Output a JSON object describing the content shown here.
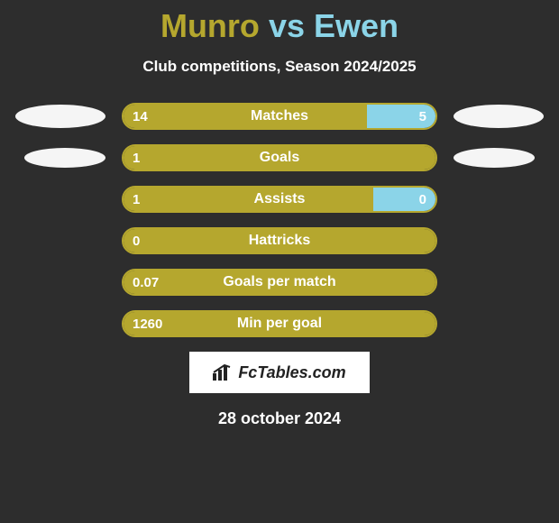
{
  "title": {
    "player1": "Munro",
    "vs": "vs",
    "player2": "Ewen",
    "player1_color": "#b5a72e",
    "vs_color": "#8bd4e8",
    "player2_color": "#8bd4e8",
    "fontsize": 36
  },
  "subtitle": "Club competitions, Season 2024/2025",
  "subtitle_color": "#ffffff",
  "subtitle_fontsize": 17,
  "background_color": "#2d2d2d",
  "bar_wrap_width": 350,
  "bar_wrap_height": 30,
  "bar_border_color": "#b5a72e",
  "bar_border_radius": 15,
  "left_fill_color": "#b5a72e",
  "right_fill_color": "#8bd4e8",
  "ellipse_color": "#f5f5f5",
  "text_color": "#ffffff",
  "rows": [
    {
      "label": "Matches",
      "left_val": "14",
      "right_val": "5",
      "left_pct": 78,
      "right_pct": 22,
      "show_left_ellipse": true,
      "show_right_ellipse": true,
      "ellipse_small": false
    },
    {
      "label": "Goals",
      "left_val": "1",
      "right_val": "",
      "left_pct": 100,
      "right_pct": 0,
      "show_left_ellipse": true,
      "show_right_ellipse": true,
      "ellipse_small": true
    },
    {
      "label": "Assists",
      "left_val": "1",
      "right_val": "0",
      "left_pct": 80,
      "right_pct": 20,
      "show_left_ellipse": false,
      "show_right_ellipse": false,
      "ellipse_small": false
    },
    {
      "label": "Hattricks",
      "left_val": "0",
      "right_val": "",
      "left_pct": 100,
      "right_pct": 0,
      "show_left_ellipse": false,
      "show_right_ellipse": false,
      "ellipse_small": false
    },
    {
      "label": "Goals per match",
      "left_val": "0.07",
      "right_val": "",
      "left_pct": 100,
      "right_pct": 0,
      "show_left_ellipse": false,
      "show_right_ellipse": false,
      "ellipse_small": false
    },
    {
      "label": "Min per goal",
      "left_val": "1260",
      "right_val": "",
      "left_pct": 100,
      "right_pct": 0,
      "show_left_ellipse": false,
      "show_right_ellipse": false,
      "ellipse_small": false
    }
  ],
  "logo_text": "FcTables.com",
  "logo_bg": "#ffffff",
  "logo_text_color": "#222222",
  "date": "28 october 2024",
  "date_color": "#ffffff",
  "date_fontsize": 18
}
